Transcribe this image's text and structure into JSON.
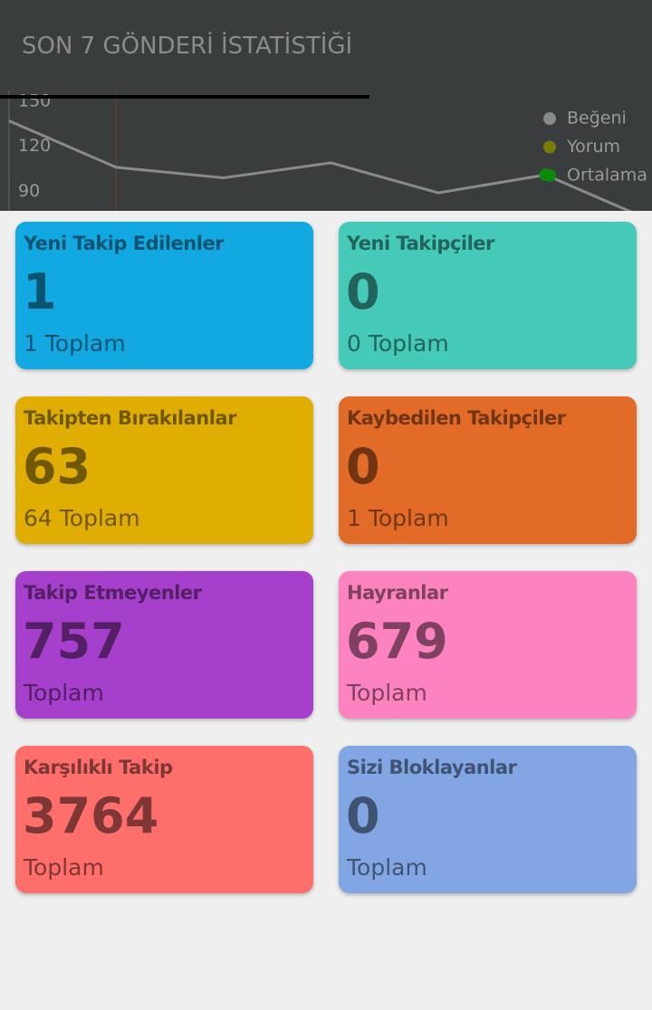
{
  "header": {
    "title": "SON 7 GÖNDERİ İSTATİSTİĞİ"
  },
  "chart": {
    "type": "line",
    "ylim": [
      77,
      153
    ],
    "yticks": [
      150,
      120,
      90
    ],
    "series": [
      {
        "name": "Beğeni",
        "color": "#8a8a8a",
        "values": [
          137,
          106,
          99,
          109,
          89,
          101,
          70
        ]
      },
      {
        "name": "Yorum",
        "color": "#7a7a0a",
        "values": []
      },
      {
        "name": "Ortalama",
        "color": "#0a8a0a",
        "values": []
      }
    ]
  },
  "cards": [
    {
      "title": "Yeni Takip Edilenler",
      "value": "1",
      "total": "1",
      "total_label": "Toplam",
      "color": "#12a9e2"
    },
    {
      "title": "Yeni Takipçiler",
      "value": "0",
      "total": "0",
      "total_label": "Toplam",
      "color": "#45c9b9"
    },
    {
      "title": "Takipten Bırakılanlar",
      "value": "63",
      "total": "64",
      "total_label": "Toplam",
      "color": "#e0ae03"
    },
    {
      "title": "Kaybedilen Takipçiler",
      "value": "0",
      "total": "1",
      "total_label": "Toplam",
      "color": "#e36b28"
    },
    {
      "title": "Takip Etmeyenler",
      "value": "757",
      "total_label": "Toplam",
      "color": "#a63fcb"
    },
    {
      "title": "Hayranlar",
      "value": "679",
      "total_label": "Toplam",
      "color": "#fd82c0"
    },
    {
      "title": "Karşılıklı Takip",
      "value": "3764",
      "total_label": "Toplam",
      "color": "#fe6e6a"
    },
    {
      "title": "Sizi Bloklayanlar",
      "value": "0",
      "total_label": "Toplam",
      "color": "#82a6e4"
    }
  ]
}
